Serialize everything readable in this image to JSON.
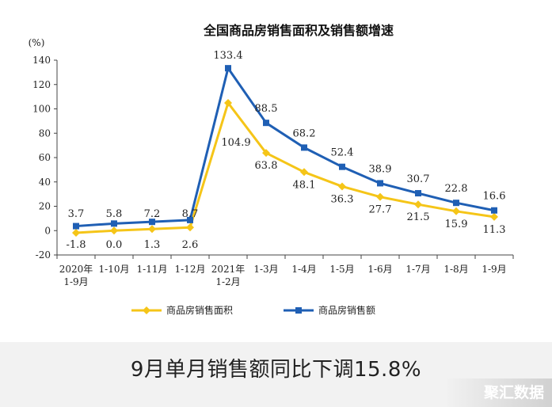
{
  "chart_data": {
    "type": "line",
    "title": "全国商品房销售面积及销售额增速",
    "ylabel": "(%)",
    "xlabel": "",
    "ylim": [
      -20,
      140
    ],
    "yticks": [
      -20,
      0,
      20,
      40,
      60,
      80,
      100,
      120,
      140
    ],
    "categories": [
      [
        "2020年",
        "1-9月"
      ],
      [
        "1-10月"
      ],
      [
        "1-11月"
      ],
      [
        "1-12月"
      ],
      [
        "2021年",
        "1-2月"
      ],
      [
        "1-3月"
      ],
      [
        "1-4月"
      ],
      [
        "1-5月"
      ],
      [
        "1-6月"
      ],
      [
        "1-7月"
      ],
      [
        "1-8月"
      ],
      [
        "1-9月"
      ]
    ],
    "series": [
      {
        "name": "商品房销售面积",
        "color": "#f5c518",
        "marker": "diamond",
        "values": [
          -1.8,
          0.0,
          1.3,
          2.6,
          104.9,
          63.8,
          48.1,
          36.3,
          27.7,
          21.5,
          15.9,
          11.3
        ],
        "labels": [
          "-1.8",
          "0.0",
          "1.3",
          "2.6",
          "104.9",
          "63.8",
          "48.1",
          "36.3",
          "27.7",
          "21.5",
          "15.9",
          "11.3"
        ]
      },
      {
        "name": "商品房销售额",
        "color": "#1f5fb4",
        "marker": "square",
        "values": [
          3.7,
          5.8,
          7.2,
          8.7,
          133.4,
          88.5,
          68.2,
          52.4,
          38.9,
          30.7,
          22.8,
          16.6
        ],
        "labels": [
          "3.7",
          "5.8",
          "7.2",
          "8.7",
          "133.4",
          "88.5",
          "68.2",
          "52.4",
          "38.9",
          "30.7",
          "22.8",
          "16.6"
        ]
      }
    ],
    "legend": "bottom"
  },
  "caption": "9月单月销售额同比下调15.8%",
  "watermark": "聚汇数据"
}
